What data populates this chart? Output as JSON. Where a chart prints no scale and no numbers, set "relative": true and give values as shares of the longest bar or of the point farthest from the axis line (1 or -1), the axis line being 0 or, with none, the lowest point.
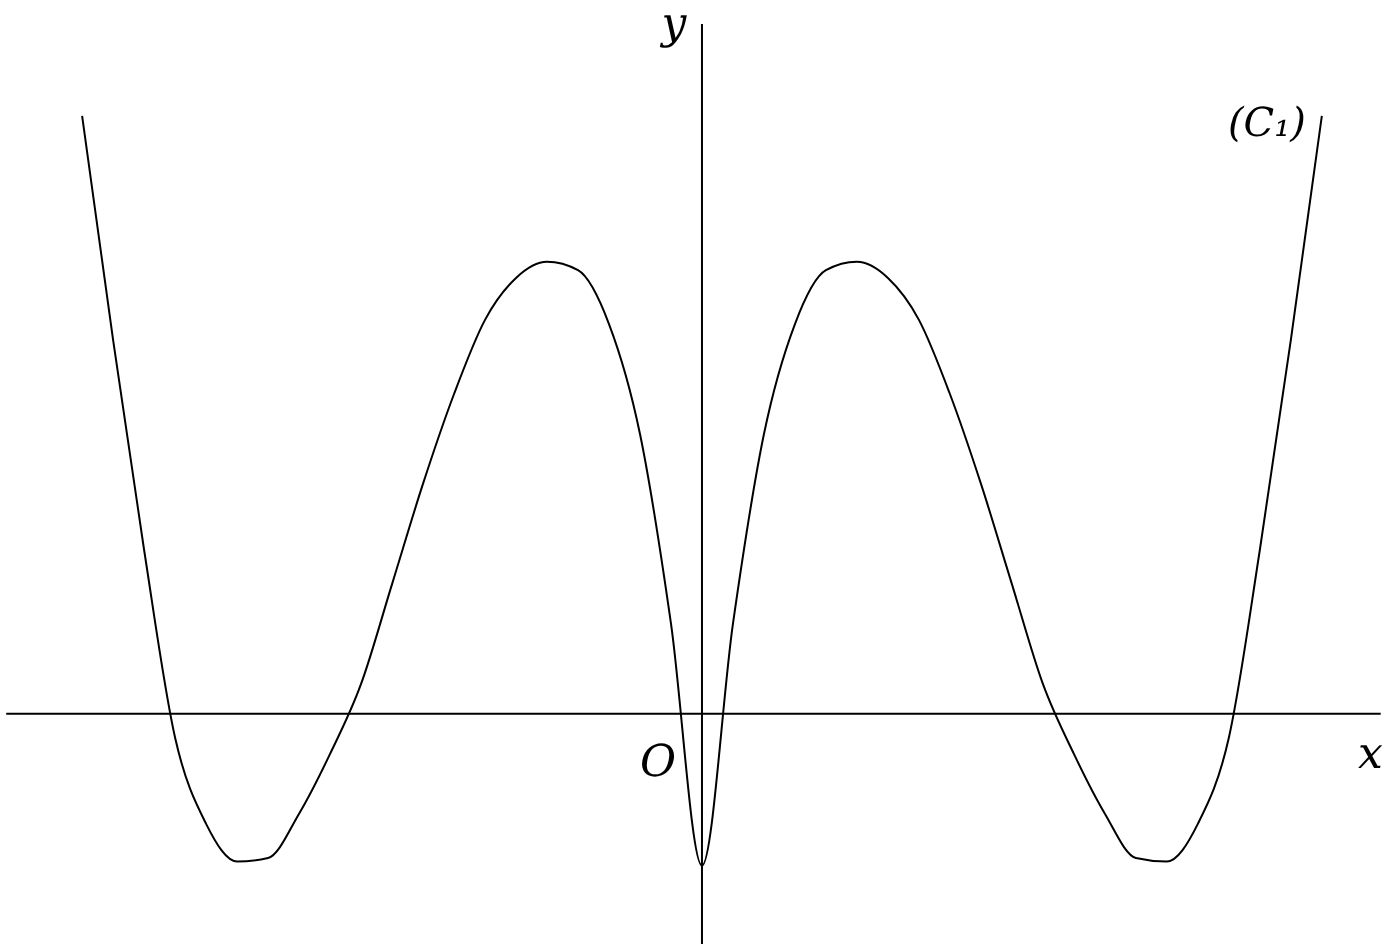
{
  "chart_data": {
    "type": "line",
    "relative": true,
    "xlabel": "x",
    "ylabel": "y",
    "marker": "none",
    "line_style": "solid",
    "categories": [
      null,
      null,
      null,
      null,
      null,
      null,
      null,
      null,
      null,
      null,
      null,
      null,
      null,
      null,
      null,
      null,
      null,
      null,
      null,
      null,
      null,
      null,
      null,
      null,
      null,
      null,
      null,
      null,
      null,
      null,
      null,
      null,
      null,
      null,
      null,
      null,
      null,
      null,
      null,
      null,
      null
    ],
    "series": [
      {
        "name": "(C₁)",
        "color": "#000000",
        "values": [
          1,
          0.625,
          0.274,
          -0.04,
          -0.184,
          -0.247,
          -0.241,
          -0.167,
          -0.067,
          0.05,
          0.217,
          0.385,
          0.535,
          0.659,
          0.729,
          0.756,
          0.742,
          0.652,
          0.468,
          0.151,
          -0.254,
          0.151,
          0.468,
          0.652,
          0.742,
          0.756,
          0.729,
          0.659,
          0.535,
          0.385,
          0.217,
          0.05,
          -0.067,
          -0.167,
          -0.241,
          -0.247,
          -0.184,
          -0.04,
          0.274,
          0.625,
          1
        ]
      }
    ],
    "annotations": [
      "O"
    ]
  }
}
